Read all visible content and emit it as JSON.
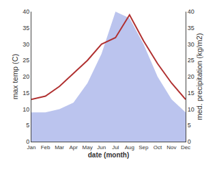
{
  "chart_data": {
    "type": "line",
    "categories": [
      "Jan",
      "Feb",
      "Mar",
      "Apr",
      "May",
      "Jun",
      "Jul",
      "Aug",
      "Sep",
      "Oct",
      "Nov",
      "Dec"
    ],
    "series": [
      {
        "type": "area",
        "axis": "y2",
        "color": "#bbc4ee",
        "values": [
          9,
          9,
          10,
          12,
          18,
          27,
          40,
          38,
          30,
          20,
          13,
          9
        ]
      },
      {
        "type": "line",
        "color": "#b03030",
        "values": [
          13,
          14,
          17,
          21,
          25,
          30,
          32,
          39,
          31,
          24,
          18,
          13
        ]
      }
    ],
    "xlabel": "date (month)",
    "ylabel": "max temp (C)",
    "y2label": "med. precipitation (kg/m2)",
    "ylim": [
      0,
      40
    ],
    "yticks": [
      0,
      5,
      10,
      15,
      20,
      25,
      30,
      35,
      40
    ],
    "y2lim": [
      0,
      40
    ],
    "y2ticks": [
      0,
      5,
      10,
      15,
      20,
      25,
      30,
      35,
      40
    ],
    "grid": false
  }
}
